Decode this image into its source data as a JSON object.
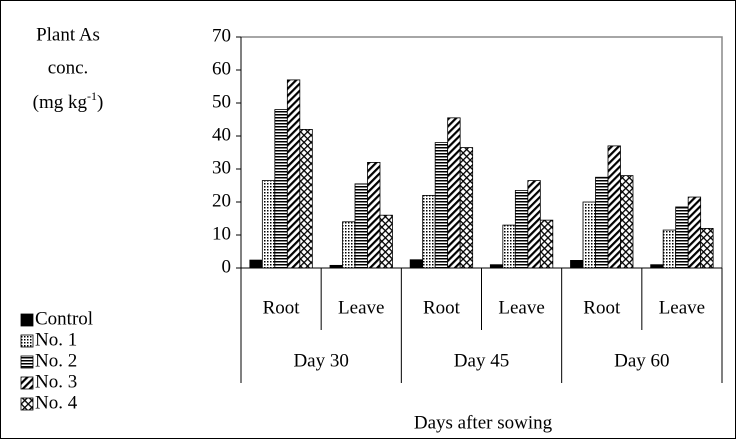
{
  "chart_data": {
    "type": "bar",
    "y_label": {
      "lines": [
        "Plant As",
        "conc."
      ],
      "unit_open": "(mg kg",
      "unit_exp": "-1",
      "unit_close": ")"
    },
    "x_label": "Days after sowing",
    "categories": [
      "Root",
      "Leave",
      "Root",
      "Leave",
      "Root",
      "Leave"
    ],
    "groups": [
      "Day 30",
      "Day 45",
      "Day 60"
    ],
    "series": [
      {
        "name": "Control",
        "color": "#000000",
        "pattern": "solid",
        "values": [
          2.4,
          0.8,
          2.5,
          1,
          2.3,
          1
        ]
      },
      {
        "name": "No. 1",
        "color": "#000000",
        "pattern": "dots",
        "values": [
          26.5,
          14,
          22,
          13,
          20,
          11.5
        ]
      },
      {
        "name": "No. 2",
        "color": "#000000",
        "pattern": "hlines",
        "values": [
          48,
          25.5,
          38,
          23.5,
          27.5,
          18.5
        ]
      },
      {
        "name": "No. 3",
        "color": "#000000",
        "pattern": "diag",
        "values": [
          57,
          32,
          45.5,
          26.5,
          37,
          21.5
        ]
      },
      {
        "name": "No. 4",
        "color": "#000000",
        "pattern": "cross",
        "values": [
          42,
          16,
          36.5,
          14.5,
          28,
          12
        ]
      }
    ],
    "ylim": [
      0,
      70
    ],
    "yticks": [
      0,
      10,
      20,
      30,
      40,
      50,
      60,
      70
    ],
    "grid": false
  }
}
